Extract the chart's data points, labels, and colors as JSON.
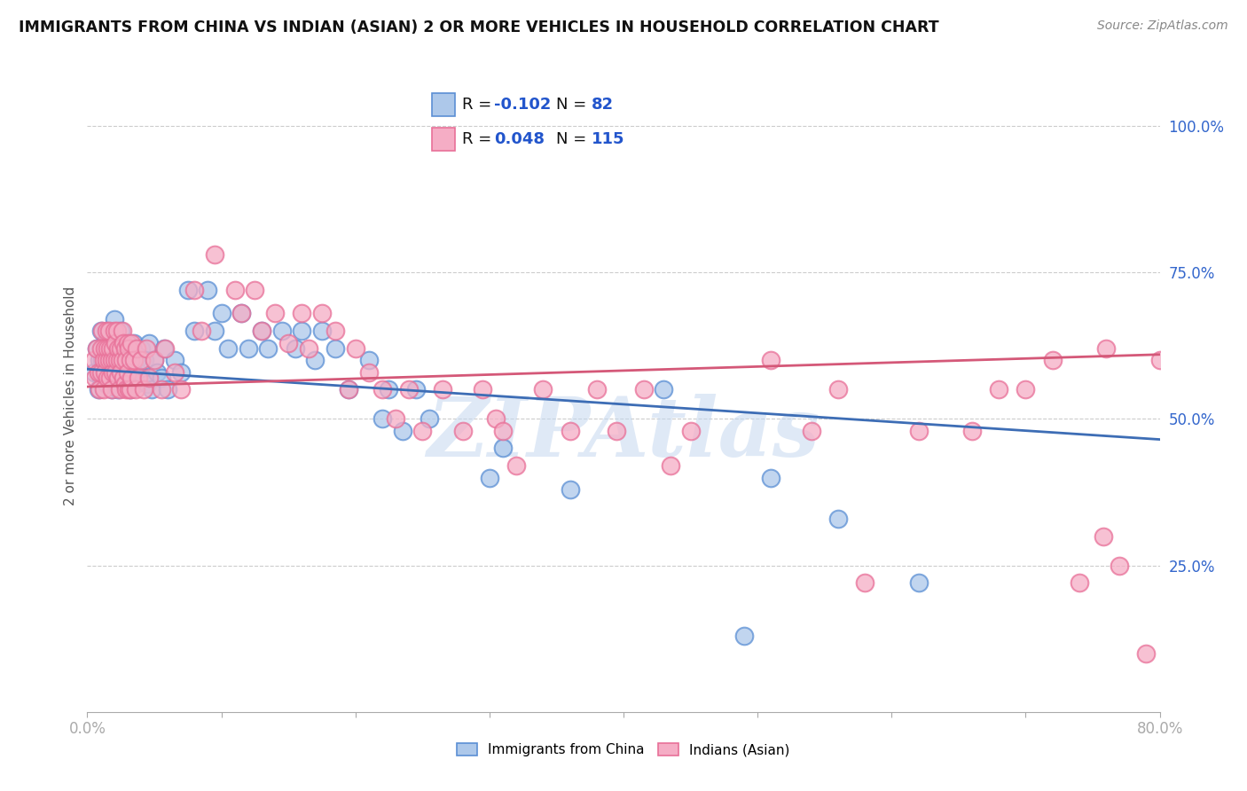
{
  "title": "IMMIGRANTS FROM CHINA VS INDIAN (ASIAN) 2 OR MORE VEHICLES IN HOUSEHOLD CORRELATION CHART",
  "source": "Source: ZipAtlas.com",
  "ylabel": "2 or more Vehicles in Household",
  "xlim": [
    0.0,
    0.8
  ],
  "ylim": [
    0.0,
    1.08
  ],
  "xticks": [
    0.0,
    0.1,
    0.2,
    0.3,
    0.4,
    0.5,
    0.6,
    0.7,
    0.8
  ],
  "xticklabels": [
    "0.0%",
    "",
    "",
    "",
    "",
    "",
    "",
    "",
    "80.0%"
  ],
  "yticks_right": [
    0.25,
    0.5,
    0.75,
    1.0
  ],
  "yticklabels_right": [
    "25.0%",
    "50.0%",
    "75.0%",
    "100.0%"
  ],
  "china_color": "#adc8ea",
  "india_color": "#f5adc5",
  "china_edge_color": "#5b8fd4",
  "india_edge_color": "#e87098",
  "china_line_color": "#3d6db5",
  "india_line_color": "#d45878",
  "china_R": -0.102,
  "china_N": 82,
  "india_R": 0.048,
  "india_N": 115,
  "china_label": "Immigrants from China",
  "india_label": "Indians (Asian)",
  "watermark": "ZIPAtlas",
  "background_color": "#ffffff",
  "grid_color": "#cccccc",
  "legend_R_color": "#2255cc",
  "china_trend_start": 0.585,
  "china_trend_end": 0.465,
  "india_trend_start": 0.555,
  "india_trend_end": 0.61,
  "china_scatter": [
    [
      0.005,
      0.58
    ],
    [
      0.007,
      0.62
    ],
    [
      0.008,
      0.55
    ],
    [
      0.009,
      0.6
    ],
    [
      0.01,
      0.65
    ],
    [
      0.01,
      0.57
    ],
    [
      0.011,
      0.6
    ],
    [
      0.012,
      0.58
    ],
    [
      0.013,
      0.63
    ],
    [
      0.014,
      0.56
    ],
    [
      0.015,
      0.62
    ],
    [
      0.015,
      0.59
    ],
    [
      0.016,
      0.65
    ],
    [
      0.017,
      0.58
    ],
    [
      0.018,
      0.6
    ],
    [
      0.018,
      0.55
    ],
    [
      0.019,
      0.63
    ],
    [
      0.02,
      0.67
    ],
    [
      0.02,
      0.58
    ],
    [
      0.021,
      0.62
    ],
    [
      0.022,
      0.57
    ],
    [
      0.022,
      0.6
    ],
    [
      0.023,
      0.55
    ],
    [
      0.024,
      0.62
    ],
    [
      0.025,
      0.58
    ],
    [
      0.025,
      0.65
    ],
    [
      0.026,
      0.6
    ],
    [
      0.027,
      0.57
    ],
    [
      0.028,
      0.63
    ],
    [
      0.028,
      0.56
    ],
    [
      0.029,
      0.6
    ],
    [
      0.03,
      0.58
    ],
    [
      0.031,
      0.62
    ],
    [
      0.032,
      0.55
    ],
    [
      0.033,
      0.6
    ],
    [
      0.034,
      0.58
    ],
    [
      0.035,
      0.63
    ],
    [
      0.036,
      0.56
    ],
    [
      0.037,
      0.6
    ],
    [
      0.038,
      0.58
    ],
    [
      0.04,
      0.62
    ],
    [
      0.042,
      0.57
    ],
    [
      0.043,
      0.6
    ],
    [
      0.045,
      0.56
    ],
    [
      0.046,
      0.63
    ],
    [
      0.048,
      0.55
    ],
    [
      0.05,
      0.6
    ],
    [
      0.052,
      0.58
    ],
    [
      0.055,
      0.57
    ],
    [
      0.057,
      0.62
    ],
    [
      0.06,
      0.55
    ],
    [
      0.065,
      0.6
    ],
    [
      0.07,
      0.58
    ],
    [
      0.075,
      0.72
    ],
    [
      0.08,
      0.65
    ],
    [
      0.09,
      0.72
    ],
    [
      0.095,
      0.65
    ],
    [
      0.1,
      0.68
    ],
    [
      0.105,
      0.62
    ],
    [
      0.115,
      0.68
    ],
    [
      0.12,
      0.62
    ],
    [
      0.13,
      0.65
    ],
    [
      0.135,
      0.62
    ],
    [
      0.145,
      0.65
    ],
    [
      0.155,
      0.62
    ],
    [
      0.16,
      0.65
    ],
    [
      0.17,
      0.6
    ],
    [
      0.175,
      0.65
    ],
    [
      0.185,
      0.62
    ],
    [
      0.195,
      0.55
    ],
    [
      0.21,
      0.6
    ],
    [
      0.22,
      0.5
    ],
    [
      0.225,
      0.55
    ],
    [
      0.235,
      0.48
    ],
    [
      0.245,
      0.55
    ],
    [
      0.255,
      0.5
    ],
    [
      0.3,
      0.4
    ],
    [
      0.31,
      0.45
    ],
    [
      0.36,
      0.38
    ],
    [
      0.43,
      0.55
    ],
    [
      0.49,
      0.13
    ],
    [
      0.51,
      0.4
    ],
    [
      0.56,
      0.33
    ],
    [
      0.62,
      0.22
    ]
  ],
  "india_scatter": [
    [
      0.005,
      0.6
    ],
    [
      0.006,
      0.57
    ],
    [
      0.007,
      0.62
    ],
    [
      0.008,
      0.58
    ],
    [
      0.009,
      0.55
    ],
    [
      0.01,
      0.62
    ],
    [
      0.01,
      0.58
    ],
    [
      0.011,
      0.65
    ],
    [
      0.012,
      0.6
    ],
    [
      0.012,
      0.55
    ],
    [
      0.013,
      0.62
    ],
    [
      0.013,
      0.58
    ],
    [
      0.014,
      0.65
    ],
    [
      0.014,
      0.6
    ],
    [
      0.015,
      0.62
    ],
    [
      0.015,
      0.57
    ],
    [
      0.016,
      0.65
    ],
    [
      0.016,
      0.6
    ],
    [
      0.017,
      0.62
    ],
    [
      0.017,
      0.57
    ],
    [
      0.018,
      0.6
    ],
    [
      0.018,
      0.55
    ],
    [
      0.019,
      0.62
    ],
    [
      0.019,
      0.58
    ],
    [
      0.02,
      0.65
    ],
    [
      0.02,
      0.6
    ],
    [
      0.021,
      0.63
    ],
    [
      0.021,
      0.58
    ],
    [
      0.022,
      0.65
    ],
    [
      0.022,
      0.6
    ],
    [
      0.023,
      0.62
    ],
    [
      0.023,
      0.57
    ],
    [
      0.024,
      0.6
    ],
    [
      0.024,
      0.55
    ],
    [
      0.025,
      0.62
    ],
    [
      0.025,
      0.58
    ],
    [
      0.026,
      0.65
    ],
    [
      0.026,
      0.6
    ],
    [
      0.027,
      0.63
    ],
    [
      0.027,
      0.57
    ],
    [
      0.028,
      0.62
    ],
    [
      0.028,
      0.56
    ],
    [
      0.029,
      0.6
    ],
    [
      0.029,
      0.55
    ],
    [
      0.03,
      0.63
    ],
    [
      0.03,
      0.58
    ],
    [
      0.031,
      0.62
    ],
    [
      0.031,
      0.55
    ],
    [
      0.032,
      0.6
    ],
    [
      0.032,
      0.55
    ],
    [
      0.033,
      0.63
    ],
    [
      0.033,
      0.57
    ],
    [
      0.035,
      0.6
    ],
    [
      0.036,
      0.55
    ],
    [
      0.037,
      0.62
    ],
    [
      0.038,
      0.57
    ],
    [
      0.04,
      0.6
    ],
    [
      0.042,
      0.55
    ],
    [
      0.044,
      0.62
    ],
    [
      0.046,
      0.57
    ],
    [
      0.05,
      0.6
    ],
    [
      0.055,
      0.55
    ],
    [
      0.058,
      0.62
    ],
    [
      0.065,
      0.58
    ],
    [
      0.07,
      0.55
    ],
    [
      0.08,
      0.72
    ],
    [
      0.085,
      0.65
    ],
    [
      0.095,
      0.78
    ],
    [
      0.11,
      0.72
    ],
    [
      0.115,
      0.68
    ],
    [
      0.125,
      0.72
    ],
    [
      0.13,
      0.65
    ],
    [
      0.14,
      0.68
    ],
    [
      0.15,
      0.63
    ],
    [
      0.16,
      0.68
    ],
    [
      0.165,
      0.62
    ],
    [
      0.175,
      0.68
    ],
    [
      0.185,
      0.65
    ],
    [
      0.195,
      0.55
    ],
    [
      0.2,
      0.62
    ],
    [
      0.21,
      0.58
    ],
    [
      0.22,
      0.55
    ],
    [
      0.23,
      0.5
    ],
    [
      0.24,
      0.55
    ],
    [
      0.25,
      0.48
    ],
    [
      0.265,
      0.55
    ],
    [
      0.28,
      0.48
    ],
    [
      0.295,
      0.55
    ],
    [
      0.305,
      0.5
    ],
    [
      0.31,
      0.48
    ],
    [
      0.32,
      0.42
    ],
    [
      0.34,
      0.55
    ],
    [
      0.36,
      0.48
    ],
    [
      0.38,
      0.55
    ],
    [
      0.395,
      0.48
    ],
    [
      0.415,
      0.55
    ],
    [
      0.435,
      0.42
    ],
    [
      0.45,
      0.48
    ],
    [
      0.51,
      0.6
    ],
    [
      0.54,
      0.48
    ],
    [
      0.56,
      0.55
    ],
    [
      0.58,
      0.22
    ],
    [
      0.62,
      0.48
    ],
    [
      0.66,
      0.48
    ],
    [
      0.68,
      0.55
    ],
    [
      0.7,
      0.55
    ],
    [
      0.72,
      0.6
    ],
    [
      0.74,
      0.22
    ],
    [
      0.758,
      0.3
    ],
    [
      0.76,
      0.62
    ],
    [
      0.77,
      0.25
    ],
    [
      0.79,
      0.1
    ],
    [
      0.8,
      0.6
    ]
  ]
}
